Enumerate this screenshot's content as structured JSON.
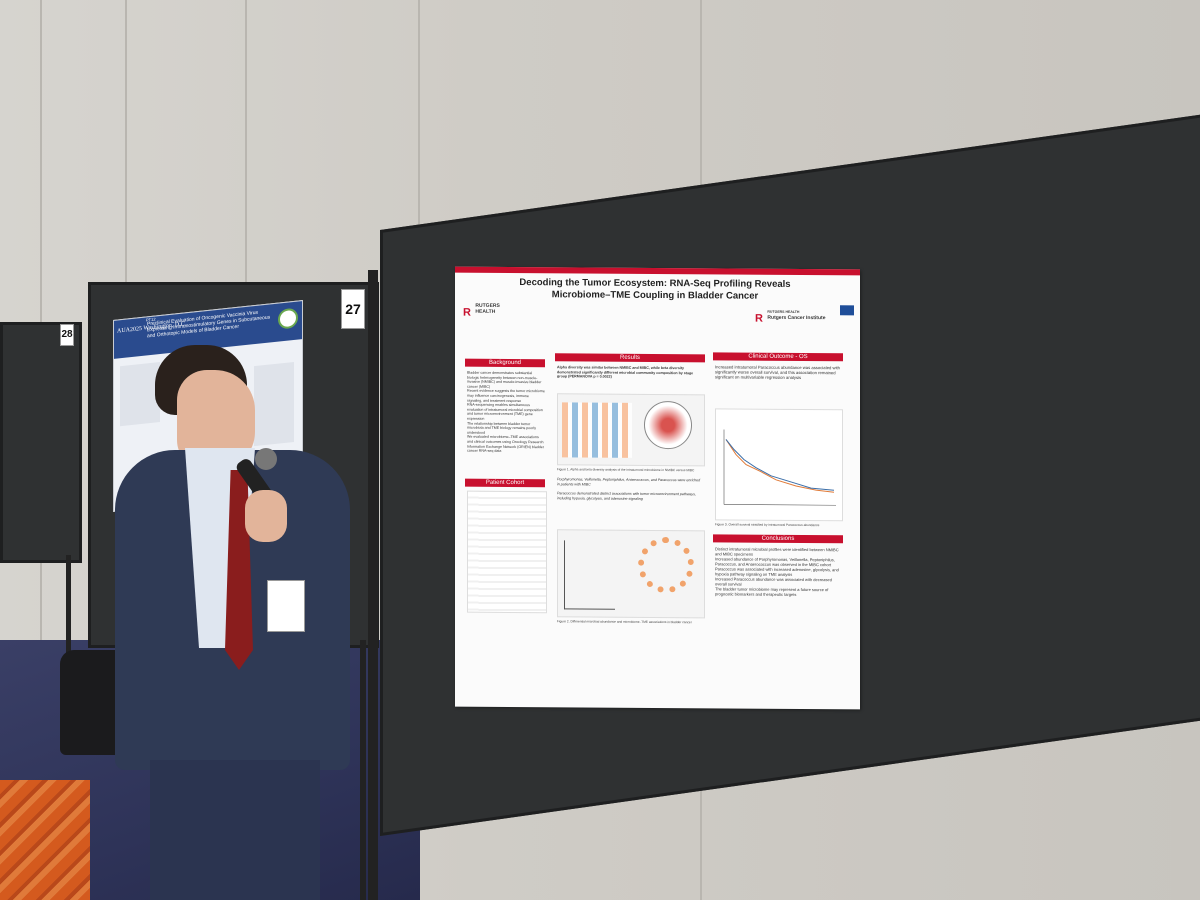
{
  "scene": {
    "description_colors": {
      "wall": "#cfccc6",
      "board": "#2f3132",
      "poster_accent": "#c8102e",
      "carpet": "#2e3358"
    }
  },
  "board_numbers": {
    "left": "28",
    "center": "27"
  },
  "left_poster": {
    "title": "Preclinical Evaluation of Oncogenic Vaccinia Virus Expressing Immunostimulatory Genes in Subcutaneous and Orthotopic Models of Bladder Cancer",
    "venue": "AUA2025 Washington, D.C.",
    "id": "PT12"
  },
  "poster": {
    "title": "Decoding the Tumor Ecosystem: RNA-Seq Profiling Reveals Microbiome–TME Coupling in Bladder Cancer",
    "logo_left": "RUTGERS",
    "logo_left_sub": "HEALTH",
    "logo_right": "Rutgers Cancer Institute",
    "logo_right_sub": "RUTGERS HEALTH",
    "sections": {
      "background": {
        "header": "Background",
        "bullets": [
          "Bladder cancer demonstrates substantial biologic heterogeneity between non-muscle-invasive (NMIBC) and muscle-invasive bladder cancer (MIBC)",
          "Recent evidence suggests the tumor microbiome may influence carcinogenesis, immune signaling, and treatment response",
          "RNA-sequencing enables simultaneous evaluation of intratumoral microbial composition and tumor microenvironment (TME) gene expression",
          "The relationship between bladder tumor microbiota and TME biology remains poorly understood",
          "We evaluated microbiome–TME associations and clinical outcomes using Oncology Research Information Exchange Network (ORIEN) bladder cancer RNA-seq data"
        ]
      },
      "patient_cohort": {
        "header": "Patient Cohort"
      },
      "results": {
        "header": "Results",
        "finding1": "Alpha diversity was similar between NMIBC and MIBC, while beta diversity demonstrated significantly different microbial community composition by stage group (PERMANOVA p = 0.0022)",
        "fig1_caption": "Figure 1. Alpha and beta diversity analysis of the intratumoral microbiome in NMIBC versus MIBC",
        "finding2": "Porphyromonas, Veillonella, Peptoniphilus, Anaerococcus, and Paracoccus were enriched in patients with MIBC",
        "finding3": "Paracoccus demonstrated distinct associations with tumor microenvironment pathways, including hypoxia, glycolysis, and adenosine signaling",
        "fig2_caption": "Figure 2. Differential microbial abundance and microbiome–TME associations in bladder cancer"
      },
      "clinical_outcome": {
        "header": "Clinical Outcome - OS",
        "bullets": [
          "Increased intratumoral Paracoccus abundance was associated with significantly worse overall survival, and this association remained significant on multivariable regression analysis"
        ],
        "fig3_caption": "Figure 3. Overall survival stratified by intratumoral Paracoccus abundance"
      },
      "conclusions": {
        "header": "Conclusions",
        "bullets": [
          "Distinct intratumoral microbial profiles were identified between NMIBC and MIBC specimens",
          "Increased abundance of Porphyromonas, Veillonella, Peptoniphilus, Paracoccus, and Anaerococcus was observed in the MIBC cohort",
          "Paracoccus was associated with increased adenosine, glycolysis, and hypoxia pathway signaling on TME analysis",
          "Increased Paracoccus abundance was associated with decreased overall survival",
          "The bladder tumor microbiome may represent a future source of prognostic biomarkers and therapeutic targets"
        ]
      }
    }
  }
}
